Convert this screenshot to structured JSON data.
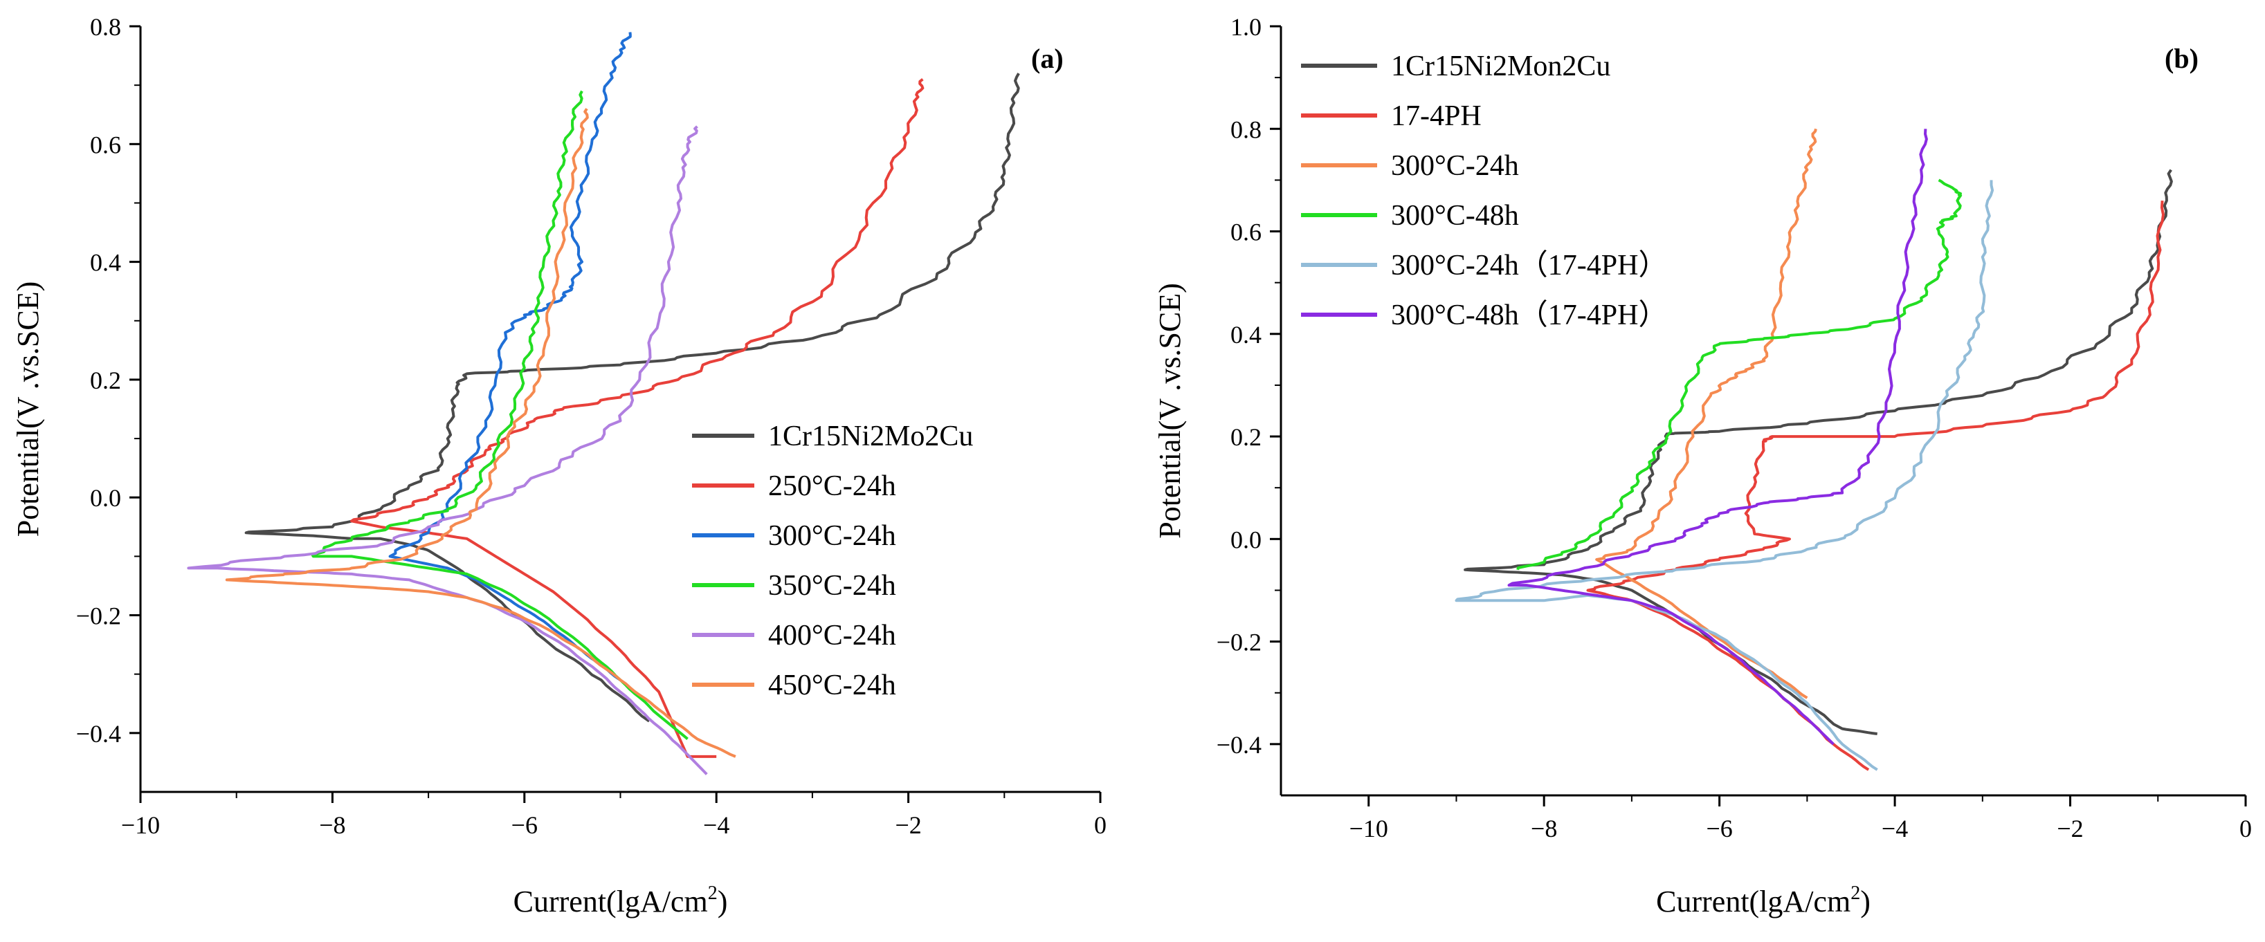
{
  "chart_data": [
    {
      "type": "line",
      "panel_label": "(a)",
      "xlabel": "Current(lgA/cm",
      "xlabel_sup": "2",
      "xlabel_end": ")",
      "ylabel": "Potential(V .vs.SCE)",
      "xlim": [
        -10,
        0
      ],
      "ylim": [
        -0.5,
        0.8
      ],
      "xticks": [
        -10,
        -8,
        -6,
        -4,
        -2,
        0
      ],
      "xtick_labels": [
        "−10",
        "−8",
        "−6",
        "−4",
        "−2",
        "0"
      ],
      "yticks": [
        -0.4,
        -0.2,
        0.0,
        0.2,
        0.4,
        0.6,
        0.8
      ],
      "ytick_labels": [
        "−0.4",
        "−0.2",
        "0.0",
        "0.2",
        "0.4",
        "0.6",
        "0.8"
      ],
      "legend_position": "lower-right",
      "series": [
        {
          "name": "1Cr15Ni2Mo2Cu",
          "color": "#4a4a4a",
          "x": [
            -4.7,
            -5.2,
            -5.8,
            -6.3,
            -6.7,
            -7.0,
            -7.2,
            -7.5,
            -7.8,
            -8.2,
            -8.9,
            -8.0,
            -7.5,
            -7.2,
            -6.9,
            -6.8,
            -6.75,
            -6.7,
            -6.6,
            -6.0,
            -5.0,
            -4.0,
            -3.0,
            -2.3,
            -1.7,
            -1.3,
            -1.1,
            -1.0,
            -0.95,
            -0.9,
            -0.85
          ],
          "y": [
            -0.38,
            -0.31,
            -0.24,
            -0.17,
            -0.12,
            -0.09,
            -0.08,
            -0.07,
            -0.07,
            -0.065,
            -0.06,
            -0.05,
            -0.02,
            0.02,
            0.05,
            0.1,
            0.15,
            0.19,
            0.21,
            0.215,
            0.225,
            0.245,
            0.27,
            0.31,
            0.38,
            0.45,
            0.5,
            0.55,
            0.6,
            0.67,
            0.72
          ]
        },
        {
          "name": "250°C-24h",
          "color": "#e8403a",
          "x": [
            -4.0,
            -4.3,
            -4.6,
            -5.0,
            -5.4,
            -5.7,
            -6.0,
            -6.3,
            -6.6,
            -7.0,
            -7.5,
            -7.8,
            -7.3,
            -7.0,
            -6.8,
            -6.6,
            -6.4,
            -6.2,
            -5.9,
            -5.6,
            -5.0,
            -4.4,
            -3.9,
            -3.4,
            -2.9,
            -2.5,
            -2.2,
            -2.0,
            -1.9,
            -1.85
          ],
          "y": [
            -0.44,
            -0.44,
            -0.33,
            -0.26,
            -0.2,
            -0.16,
            -0.13,
            -0.1,
            -0.07,
            -0.06,
            -0.05,
            -0.04,
            -0.02,
            0.0,
            0.02,
            0.05,
            0.08,
            0.1,
            0.13,
            0.15,
            0.17,
            0.2,
            0.24,
            0.28,
            0.35,
            0.45,
            0.55,
            0.62,
            0.68,
            0.71
          ]
        },
        {
          "name": "300°C-24h",
          "color": "#1f6fd6",
          "x": [
            -5.0,
            -5.4,
            -5.8,
            -6.2,
            -6.5,
            -6.8,
            -7.1,
            -7.4,
            -7.0,
            -6.8,
            -6.6,
            -6.4,
            -6.3,
            -6.2,
            -6.0,
            -5.8,
            -5.6,
            -5.5,
            -5.4,
            -5.5,
            -5.4,
            -5.3,
            -5.2,
            -5.1,
            -5.0,
            -4.9
          ],
          "y": [
            -0.31,
            -0.26,
            -0.21,
            -0.17,
            -0.14,
            -0.12,
            -0.11,
            -0.1,
            -0.06,
            -0.02,
            0.05,
            0.12,
            0.2,
            0.28,
            0.31,
            0.32,
            0.34,
            0.36,
            0.4,
            0.45,
            0.52,
            0.6,
            0.66,
            0.72,
            0.76,
            0.79
          ]
        },
        {
          "name": "350°C-24h",
          "color": "#22dd22",
          "x": [
            -4.3,
            -4.6,
            -5.0,
            -5.4,
            -5.8,
            -6.2,
            -6.6,
            -7.0,
            -7.4,
            -7.8,
            -8.2,
            -8.0,
            -7.6,
            -7.2,
            -6.8,
            -6.5,
            -6.3,
            -6.1,
            -6.0,
            -5.9,
            -5.85,
            -5.8,
            -5.7,
            -5.65,
            -5.6,
            -5.5,
            -5.4
          ],
          "y": [
            -0.41,
            -0.37,
            -0.31,
            -0.25,
            -0.2,
            -0.16,
            -0.13,
            -0.12,
            -0.11,
            -0.1,
            -0.1,
            -0.08,
            -0.06,
            -0.04,
            -0.02,
            0.02,
            0.08,
            0.15,
            0.22,
            0.28,
            0.33,
            0.4,
            0.47,
            0.52,
            0.58,
            0.64,
            0.69
          ]
        },
        {
          "name": "400°C-24h",
          "color": "#b07fe0",
          "x": [
            -4.1,
            -4.4,
            -4.8,
            -5.2,
            -5.6,
            -6.0,
            -6.4,
            -6.8,
            -7.2,
            -7.8,
            -8.5,
            -9.2,
            -9.5,
            -8.5,
            -7.5,
            -7.0,
            -6.5,
            -6.0,
            -5.5,
            -5.0,
            -4.8,
            -4.6,
            -4.5,
            -4.4,
            -4.35,
            -4.3,
            -4.2
          ],
          "y": [
            -0.47,
            -0.42,
            -0.36,
            -0.3,
            -0.25,
            -0.21,
            -0.18,
            -0.16,
            -0.14,
            -0.13,
            -0.125,
            -0.12,
            -0.12,
            -0.1,
            -0.08,
            -0.05,
            -0.02,
            0.02,
            0.07,
            0.13,
            0.2,
            0.3,
            0.4,
            0.5,
            0.56,
            0.6,
            0.63
          ]
        },
        {
          "name": "450°C-24h",
          "color": "#f58a50",
          "x": [
            -3.8,
            -4.2,
            -4.6,
            -5.0,
            -5.4,
            -5.8,
            -6.2,
            -6.6,
            -7.0,
            -7.4,
            -7.9,
            -8.5,
            -9.1,
            -8.5,
            -7.8,
            -7.2,
            -6.8,
            -6.5,
            -6.3,
            -6.1,
            -5.9,
            -5.8,
            -5.7,
            -5.6,
            -5.5,
            -5.4,
            -5.35
          ],
          "y": [
            -0.44,
            -0.41,
            -0.36,
            -0.31,
            -0.26,
            -0.22,
            -0.19,
            -0.17,
            -0.16,
            -0.155,
            -0.15,
            -0.145,
            -0.14,
            -0.13,
            -0.12,
            -0.1,
            -0.06,
            -0.02,
            0.05,
            0.12,
            0.18,
            0.25,
            0.35,
            0.45,
            0.55,
            0.62,
            0.66
          ]
        }
      ]
    },
    {
      "type": "line",
      "panel_label": "(b)",
      "xlabel": "Current(lgA/cm",
      "xlabel_sup": "2",
      "xlabel_end": ")",
      "ylabel": "Potential(V .vs.SCE)",
      "xlim": [
        -11,
        0
      ],
      "ylim": [
        -0.5,
        1.0
      ],
      "xticks": [
        -10,
        -8,
        -6,
        -4,
        -2,
        0
      ],
      "xtick_labels": [
        "−10",
        "−8",
        "−6",
        "−4",
        "−2",
        "0"
      ],
      "yticks": [
        -0.4,
        -0.2,
        0.0,
        0.2,
        0.4,
        0.6,
        0.8,
        1.0
      ],
      "ytick_labels": [
        "−0.4",
        "−0.2",
        "0.0",
        "0.2",
        "0.4",
        "0.6",
        "0.8",
        "1.0"
      ],
      "legend_position": "top-left",
      "series": [
        {
          "name": "1Cr15Ni2Mon2Cu",
          "color": "#4a4a4a",
          "x": [
            -4.2,
            -4.6,
            -5.2,
            -5.8,
            -6.3,
            -6.7,
            -7.0,
            -7.4,
            -7.8,
            -8.3,
            -8.9,
            -8.0,
            -7.5,
            -7.2,
            -6.9,
            -6.8,
            -6.7,
            -6.6,
            -6.0,
            -5.0,
            -4.0,
            -3.0,
            -2.3,
            -1.7,
            -1.3,
            -1.1,
            -1.0,
            -0.9,
            -0.85
          ],
          "y": [
            -0.38,
            -0.37,
            -0.3,
            -0.23,
            -0.17,
            -0.13,
            -0.1,
            -0.08,
            -0.07,
            -0.065,
            -0.06,
            -0.05,
            -0.02,
            0.02,
            0.06,
            0.12,
            0.17,
            0.205,
            0.21,
            0.225,
            0.25,
            0.28,
            0.32,
            0.38,
            0.45,
            0.52,
            0.58,
            0.66,
            0.72
          ]
        },
        {
          "name": "17-4PH",
          "color": "#e8403a",
          "x": [
            -4.3,
            -4.7,
            -5.2,
            -5.7,
            -6.2,
            -6.6,
            -7.0,
            -7.5,
            -7.0,
            -6.5,
            -6.0,
            -5.5,
            -5.2,
            -5.6,
            -5.7,
            -5.6,
            -5.5,
            -5.4,
            -5.0,
            -4.0,
            -3.0,
            -2.0,
            -1.6,
            -1.3,
            -1.1,
            -1.0,
            -0.95
          ],
          "y": [
            -0.45,
            -0.4,
            -0.32,
            -0.25,
            -0.19,
            -0.15,
            -0.12,
            -0.1,
            -0.08,
            -0.06,
            -0.04,
            -0.02,
            0.0,
            0.01,
            0.05,
            0.12,
            0.19,
            0.2,
            0.2,
            0.2,
            0.22,
            0.25,
            0.28,
            0.35,
            0.45,
            0.55,
            0.66
          ]
        },
        {
          "name": "300°C-24h",
          "color": "#f58a50",
          "x": [
            -5.0,
            -5.4,
            -5.8,
            -6.2,
            -6.6,
            -7.0,
            -7.4,
            -7.0,
            -6.7,
            -6.5,
            -6.3,
            -6.1,
            -5.9,
            -5.7,
            -5.5,
            -5.4,
            -5.3,
            -5.2,
            -5.1,
            -5.0,
            -4.95,
            -4.9
          ],
          "y": [
            -0.31,
            -0.26,
            -0.22,
            -0.17,
            -0.12,
            -0.08,
            -0.04,
            -0.02,
            0.04,
            0.1,
            0.2,
            0.28,
            0.31,
            0.33,
            0.35,
            0.4,
            0.5,
            0.58,
            0.65,
            0.72,
            0.76,
            0.8
          ]
        },
        {
          "name": "300°C-48h",
          "color": "#22dd22",
          "x": [
            -8.3,
            -7.8,
            -7.5,
            -7.2,
            -7.0,
            -6.8,
            -6.6,
            -6.4,
            -6.2,
            -6.0,
            -5.5,
            -5.0,
            -4.5,
            -4.0,
            -3.7,
            -3.5,
            -3.4,
            -3.5,
            -3.45,
            -3.3,
            -3.25,
            -3.3,
            -3.5
          ],
          "y": [
            -0.06,
            -0.03,
            0.0,
            0.05,
            0.1,
            0.15,
            0.2,
            0.28,
            0.35,
            0.38,
            0.39,
            0.4,
            0.41,
            0.43,
            0.47,
            0.52,
            0.56,
            0.6,
            0.62,
            0.63,
            0.67,
            0.68,
            0.7
          ]
        },
        {
          "name": "300°C-24h（17-4PH）",
          "color": "#92bcd8",
          "x": [
            -4.2,
            -4.6,
            -5.0,
            -5.5,
            -6.0,
            -6.5,
            -7.0,
            -7.5,
            -8.0,
            -8.5,
            -9.0,
            -8.5,
            -7.5,
            -6.5,
            -5.5,
            -5.0,
            -4.5,
            -4.0,
            -3.7,
            -3.4,
            -3.2,
            -3.1,
            -3.0,
            -3.0,
            -2.95,
            -2.9
          ],
          "y": [
            -0.45,
            -0.4,
            -0.32,
            -0.25,
            -0.19,
            -0.15,
            -0.12,
            -0.11,
            -0.12,
            -0.12,
            -0.12,
            -0.1,
            -0.08,
            -0.06,
            -0.04,
            -0.02,
            0.01,
            0.08,
            0.15,
            0.28,
            0.35,
            0.4,
            0.45,
            0.55,
            0.62,
            0.7
          ]
        },
        {
          "name": "300°C-48h（17-4PH）",
          "color": "#8a2be2",
          "x": [
            -4.7,
            -5.0,
            -5.4,
            -5.8,
            -6.2,
            -6.6,
            -7.0,
            -7.4,
            -7.8,
            -8.2,
            -8.4,
            -7.6,
            -7.0,
            -6.5,
            -6.2,
            -6.0,
            -5.5,
            -5.0,
            -4.6,
            -4.3,
            -4.1,
            -4.0,
            -3.9,
            -3.8,
            -3.7,
            -3.65
          ],
          "y": [
            -0.4,
            -0.35,
            -0.29,
            -0.23,
            -0.18,
            -0.14,
            -0.12,
            -0.11,
            -0.1,
            -0.09,
            -0.09,
            -0.06,
            -0.03,
            0.0,
            0.03,
            0.05,
            0.07,
            0.08,
            0.09,
            0.15,
            0.25,
            0.38,
            0.5,
            0.62,
            0.72,
            0.8
          ]
        }
      ]
    }
  ]
}
